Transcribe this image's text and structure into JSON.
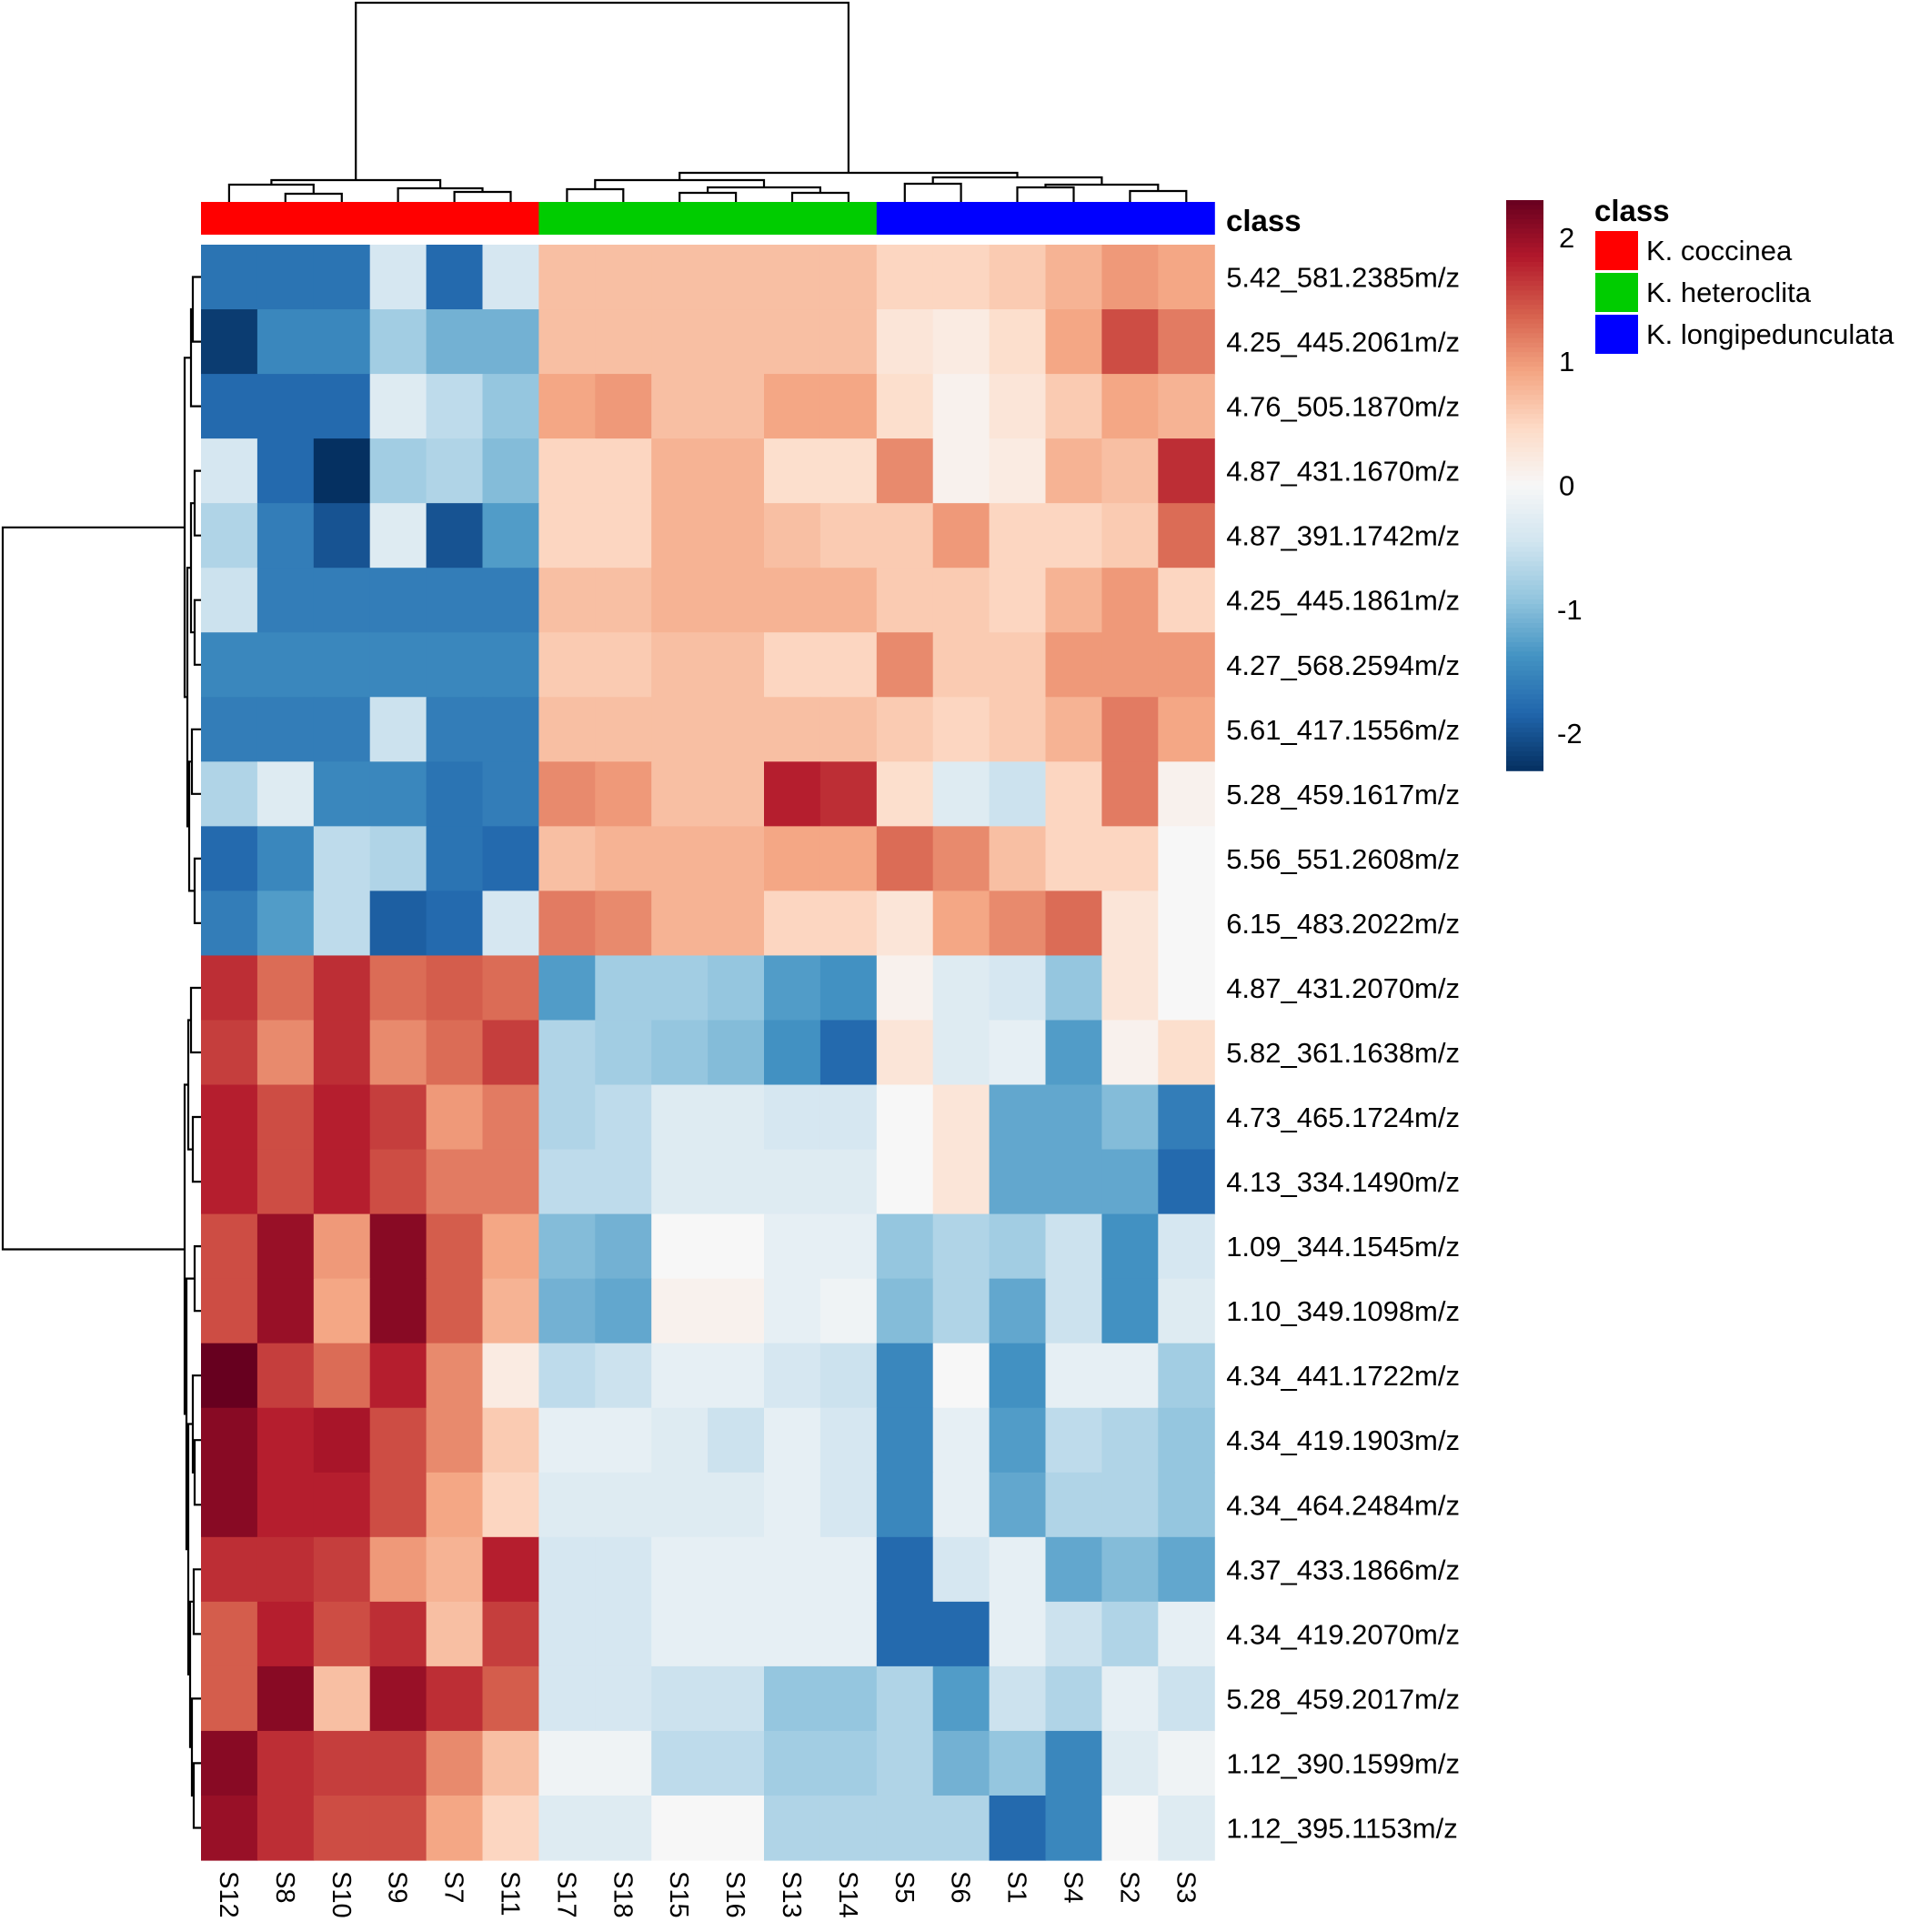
{
  "chart_data": {
    "type": "heatmap",
    "columns": [
      "S12",
      "S8",
      "S10",
      "S9",
      "S7",
      "S11",
      "S17",
      "S18",
      "S15",
      "S16",
      "S13",
      "S14",
      "S5",
      "S6",
      "S1",
      "S4",
      "S2",
      "S3"
    ],
    "rows": [
      "5.42_581.2385m/z",
      "4.25_445.2061m/z",
      "4.76_505.1870m/z",
      "4.87_431.1670m/z",
      "4.87_391.1742m/z",
      "4.25_445.1861m/z",
      "4.27_568.2594m/z",
      "5.61_417.1556m/z",
      "5.28_459.1617m/z",
      "5.56_551.2608m/z",
      "6.15_483.2022m/z",
      "4.87_431.2070m/z",
      "5.82_361.1638m/z",
      "4.73_465.1724m/z",
      "4.13_334.1490m/z",
      "1.09_344.1545m/z",
      "1.10_349.1098m/z",
      "4.34_441.1722m/z",
      "4.34_419.1903m/z",
      "4.34_464.2484m/z",
      "4.37_433.1866m/z",
      "4.34_419.2070m/z",
      "5.28_459.2017m/z",
      "1.12_390.1599m/z",
      "1.12_395.1153m/z"
    ],
    "column_class": [
      "K. coccinea",
      "K. coccinea",
      "K. coccinea",
      "K. coccinea",
      "K. coccinea",
      "K. coccinea",
      "K. heteroclita",
      "K. heteroclita",
      "K. heteroclita",
      "K. heteroclita",
      "K. heteroclita",
      "K. heteroclita",
      "K. longipedunculata",
      "K. longipedunculata",
      "K. longipedunculata",
      "K. longipedunculata",
      "K. longipedunculata",
      "K. longipedunculata"
    ],
    "annotation_label": "class",
    "legend": {
      "title": "class",
      "placement": "right",
      "items": [
        {
          "label": "K. coccinea",
          "color": "#ff0000"
        },
        {
          "label": "K. heteroclita",
          "color": "#00cc00"
        },
        {
          "label": "K. longipedunculata",
          "color": "#0000ff"
        }
      ]
    },
    "color_scale": {
      "ticks": [
        "2",
        "1",
        "0",
        "-1",
        "-2"
      ],
      "range": [
        -2.3,
        2.3
      ],
      "colors": [
        "#053061",
        "#2166ac",
        "#4393c3",
        "#92c5de",
        "#d1e5f0",
        "#f7f7f7",
        "#fddbc7",
        "#f4a582",
        "#d6604d",
        "#b2182b",
        "#67001f"
      ]
    },
    "values": [
      [
        -1.7,
        -1.7,
        -1.7,
        -0.4,
        -1.8,
        -0.4,
        0.7,
        0.7,
        0.7,
        0.7,
        0.7,
        0.7,
        0.5,
        0.5,
        0.6,
        0.8,
        1.0,
        0.9
      ],
      [
        -2.2,
        -1.5,
        -1.5,
        -0.8,
        -1.1,
        -1.1,
        0.7,
        0.7,
        0.7,
        0.7,
        0.7,
        0.7,
        0.3,
        0.2,
        0.4,
        0.9,
        1.5,
        1.2
      ],
      [
        -1.8,
        -1.8,
        -1.8,
        -0.3,
        -0.6,
        -0.9,
        0.9,
        1.0,
        0.7,
        0.7,
        0.9,
        0.9,
        0.4,
        0.1,
        0.3,
        0.6,
        0.9,
        0.8
      ],
      [
        -0.4,
        -1.8,
        -2.5,
        -0.8,
        -0.7,
        -1.0,
        0.5,
        0.5,
        0.8,
        0.8,
        0.4,
        0.4,
        1.1,
        0.1,
        0.2,
        0.8,
        0.7,
        1.7
      ],
      [
        -0.7,
        -1.6,
        -2.0,
        -0.3,
        -2.0,
        -1.3,
        0.5,
        0.5,
        0.8,
        0.8,
        0.7,
        0.6,
        0.6,
        1.0,
        0.5,
        0.5,
        0.6,
        1.3
      ],
      [
        -0.5,
        -1.6,
        -1.6,
        -1.6,
        -1.6,
        -1.6,
        0.7,
        0.7,
        0.8,
        0.8,
        0.8,
        0.8,
        0.6,
        0.6,
        0.5,
        0.8,
        1.0,
        0.5
      ],
      [
        -1.5,
        -1.5,
        -1.5,
        -1.5,
        -1.5,
        -1.5,
        0.6,
        0.6,
        0.7,
        0.7,
        0.5,
        0.5,
        1.1,
        0.6,
        0.6,
        1.0,
        1.0,
        1.0
      ],
      [
        -1.6,
        -1.6,
        -1.6,
        -0.5,
        -1.6,
        -1.6,
        0.7,
        0.7,
        0.7,
        0.7,
        0.7,
        0.7,
        0.6,
        0.5,
        0.6,
        0.8,
        1.2,
        0.9
      ],
      [
        -0.7,
        -0.3,
        -1.5,
        -1.5,
        -1.7,
        -1.6,
        1.1,
        1.0,
        0.7,
        0.7,
        1.8,
        1.7,
        0.4,
        -0.3,
        -0.5,
        0.5,
        1.2,
        0.1
      ],
      [
        -1.8,
        -1.5,
        -0.6,
        -0.7,
        -1.7,
        -1.8,
        0.7,
        0.8,
        0.8,
        0.8,
        0.9,
        0.9,
        1.3,
        1.1,
        0.7,
        0.5,
        0.5,
        0.0
      ],
      [
        -1.6,
        -1.3,
        -0.6,
        -1.9,
        -1.8,
        -0.4,
        1.2,
        1.1,
        0.8,
        0.8,
        0.5,
        0.5,
        0.3,
        0.9,
        1.1,
        1.3,
        0.3,
        0.0
      ],
      [
        1.7,
        1.3,
        1.7,
        1.3,
        1.4,
        1.3,
        -1.3,
        -0.8,
        -0.8,
        -0.9,
        -1.3,
        -1.4,
        0.1,
        -0.3,
        -0.4,
        -0.9,
        0.3,
        0.0
      ],
      [
        1.6,
        1.1,
        1.7,
        1.1,
        1.3,
        1.6,
        -0.7,
        -0.8,
        -0.9,
        -1.0,
        -1.4,
        -1.8,
        0.3,
        -0.3,
        -0.2,
        -1.3,
        0.1,
        0.4
      ],
      [
        1.8,
        1.5,
        1.8,
        1.6,
        1.0,
        1.2,
        -0.7,
        -0.6,
        -0.3,
        -0.3,
        -0.4,
        -0.4,
        0.0,
        0.3,
        -1.2,
        -1.2,
        -1.0,
        -1.6
      ],
      [
        1.8,
        1.5,
        1.8,
        1.5,
        1.2,
        1.2,
        -0.6,
        -0.6,
        -0.3,
        -0.3,
        -0.3,
        -0.3,
        0.0,
        0.3,
        -1.2,
        -1.2,
        -1.2,
        -1.8
      ],
      [
        1.5,
        2.0,
        1.0,
        2.1,
        1.4,
        0.9,
        -1.0,
        -1.1,
        0.0,
        0.0,
        -0.2,
        -0.2,
        -0.9,
        -0.7,
        -0.8,
        -0.5,
        -1.4,
        -0.4
      ],
      [
        1.5,
        2.0,
        0.9,
        2.1,
        1.4,
        0.8,
        -1.1,
        -1.2,
        0.1,
        0.1,
        -0.2,
        -0.1,
        -1.0,
        -0.7,
        -1.2,
        -0.5,
        -1.4,
        -0.3
      ],
      [
        2.3,
        1.6,
        1.3,
        1.8,
        1.1,
        0.2,
        -0.6,
        -0.5,
        -0.2,
        -0.2,
        -0.4,
        -0.5,
        -1.5,
        0.0,
        -1.4,
        -0.2,
        -0.2,
        -0.8
      ],
      [
        2.1,
        1.8,
        1.9,
        1.5,
        1.1,
        0.6,
        -0.2,
        -0.2,
        -0.3,
        -0.5,
        -0.2,
        -0.4,
        -1.5,
        -0.2,
        -1.3,
        -0.6,
        -0.7,
        -0.9
      ],
      [
        2.1,
        1.8,
        1.8,
        1.5,
        0.9,
        0.5,
        -0.3,
        -0.3,
        -0.3,
        -0.3,
        -0.2,
        -0.4,
        -1.5,
        -0.2,
        -1.2,
        -0.7,
        -0.7,
        -0.9
      ],
      [
        1.7,
        1.7,
        1.6,
        1.0,
        0.8,
        1.8,
        -0.4,
        -0.4,
        -0.2,
        -0.2,
        -0.2,
        -0.2,
        -1.8,
        -0.4,
        -0.2,
        -1.2,
        -1.0,
        -1.2
      ],
      [
        1.4,
        1.8,
        1.5,
        1.7,
        0.7,
        1.6,
        -0.4,
        -0.4,
        -0.2,
        -0.2,
        -0.2,
        -0.2,
        -1.8,
        -1.8,
        -0.2,
        -0.5,
        -0.7,
        -0.2
      ],
      [
        1.4,
        2.1,
        0.7,
        2.0,
        1.7,
        1.4,
        -0.4,
        -0.4,
        -0.5,
        -0.5,
        -0.9,
        -0.9,
        -0.7,
        -1.3,
        -0.5,
        -0.7,
        -0.2,
        -0.5
      ],
      [
        2.1,
        1.7,
        1.6,
        1.6,
        1.1,
        0.7,
        -0.1,
        -0.1,
        -0.6,
        -0.6,
        -0.8,
        -0.8,
        -0.7,
        -1.1,
        -0.9,
        -1.5,
        -0.3,
        -0.1
      ],
      [
        2.0,
        1.7,
        1.5,
        1.5,
        0.9,
        0.5,
        -0.3,
        -0.3,
        0.0,
        0.0,
        -0.7,
        -0.7,
        -0.7,
        -0.7,
        -1.8,
        -1.5,
        0.0,
        -0.3
      ]
    ]
  }
}
